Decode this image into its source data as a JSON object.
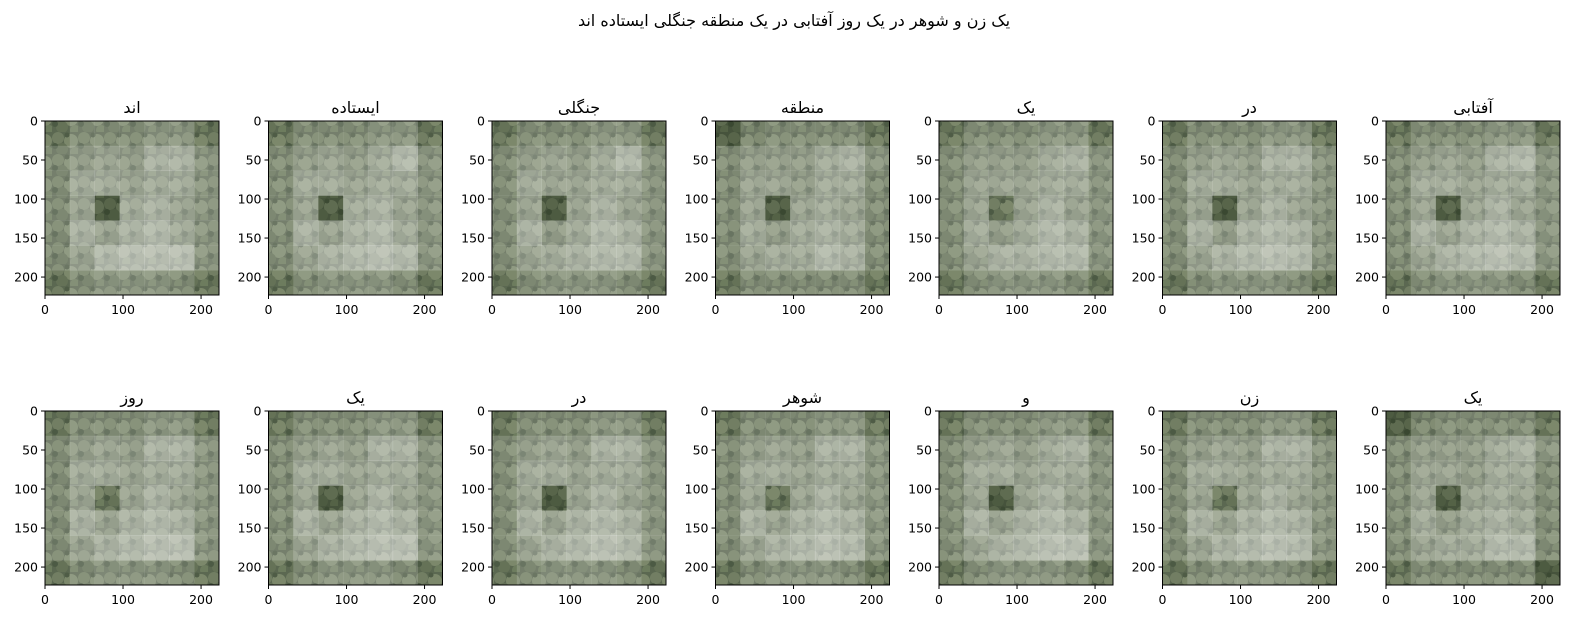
{
  "figure": {
    "title": "یک زن و شوهر در یک روز آفتابی در یک منطقه جنگلی ایستاده اند"
  },
  "chart_data": {
    "type": "heatmap",
    "description_of_panels": "attention overlays per word",
    "xlim": [
      0,
      223
    ],
    "ylim": [
      223,
      0
    ],
    "xticks": [
      0,
      100,
      200
    ],
    "yticks": [
      0,
      50,
      100,
      150,
      200
    ],
    "grid_cells": 7,
    "background_colors": {
      "dark": "#3c4a35",
      "mid": "#6f7d62",
      "light": "#a7b38f"
    },
    "overlay_color": "#ffffff",
    "panels": [
      {
        "title": "اند",
        "mask": [
          [
            0.05,
            0.2,
            0.2,
            0.2,
            0.25,
            0.25,
            0.05
          ],
          [
            0.2,
            0.3,
            0.35,
            0.3,
            0.45,
            0.45,
            0.25
          ],
          [
            0.2,
            0.4,
            0.4,
            0.35,
            0.4,
            0.4,
            0.25
          ],
          [
            0.2,
            0.35,
            0.0,
            0.4,
            0.45,
            0.35,
            0.25
          ],
          [
            0.2,
            0.45,
            0.35,
            0.45,
            0.5,
            0.4,
            0.25
          ],
          [
            0.2,
            0.35,
            0.5,
            0.55,
            0.55,
            0.55,
            0.25
          ],
          [
            0.05,
            0.2,
            0.25,
            0.25,
            0.25,
            0.2,
            0.05
          ]
        ]
      },
      {
        "title": "ایستاده",
        "mask": [
          [
            0.05,
            0.2,
            0.2,
            0.2,
            0.25,
            0.25,
            0.05
          ],
          [
            0.2,
            0.3,
            0.35,
            0.3,
            0.4,
            0.5,
            0.25
          ],
          [
            0.2,
            0.4,
            0.4,
            0.35,
            0.4,
            0.4,
            0.25
          ],
          [
            0.2,
            0.35,
            0.0,
            0.4,
            0.45,
            0.35,
            0.25
          ],
          [
            0.2,
            0.45,
            0.35,
            0.45,
            0.5,
            0.4,
            0.25
          ],
          [
            0.2,
            0.35,
            0.45,
            0.5,
            0.55,
            0.5,
            0.25
          ],
          [
            0.05,
            0.2,
            0.25,
            0.25,
            0.25,
            0.2,
            0.05
          ]
        ]
      },
      {
        "title": "جنگلی",
        "mask": [
          [
            0.05,
            0.2,
            0.2,
            0.2,
            0.25,
            0.25,
            0.05
          ],
          [
            0.2,
            0.3,
            0.35,
            0.3,
            0.4,
            0.5,
            0.25
          ],
          [
            0.2,
            0.4,
            0.35,
            0.35,
            0.4,
            0.4,
            0.25
          ],
          [
            0.2,
            0.35,
            0.0,
            0.35,
            0.45,
            0.35,
            0.25
          ],
          [
            0.2,
            0.45,
            0.3,
            0.4,
            0.5,
            0.45,
            0.25
          ],
          [
            0.2,
            0.35,
            0.4,
            0.45,
            0.5,
            0.5,
            0.25
          ],
          [
            0.05,
            0.2,
            0.25,
            0.25,
            0.25,
            0.2,
            0.05
          ]
        ]
      },
      {
        "title": "منطقه",
        "mask": [
          [
            0.0,
            0.15,
            0.2,
            0.2,
            0.2,
            0.2,
            0.05
          ],
          [
            0.2,
            0.3,
            0.3,
            0.3,
            0.4,
            0.45,
            0.25
          ],
          [
            0.2,
            0.35,
            0.35,
            0.3,
            0.4,
            0.4,
            0.2
          ],
          [
            0.2,
            0.35,
            0.0,
            0.35,
            0.4,
            0.35,
            0.2
          ],
          [
            0.2,
            0.4,
            0.3,
            0.4,
            0.45,
            0.4,
            0.2
          ],
          [
            0.2,
            0.35,
            0.4,
            0.4,
            0.5,
            0.45,
            0.2
          ],
          [
            0.05,
            0.2,
            0.2,
            0.2,
            0.2,
            0.2,
            0.05
          ]
        ]
      },
      {
        "title": "یک",
        "mask": [
          [
            0.05,
            0.2,
            0.2,
            0.2,
            0.25,
            0.25,
            0.05
          ],
          [
            0.2,
            0.3,
            0.3,
            0.3,
            0.4,
            0.45,
            0.25
          ],
          [
            0.2,
            0.35,
            0.35,
            0.35,
            0.4,
            0.4,
            0.25
          ],
          [
            0.2,
            0.35,
            0.05,
            0.35,
            0.45,
            0.35,
            0.25
          ],
          [
            0.2,
            0.4,
            0.3,
            0.4,
            0.5,
            0.45,
            0.25
          ],
          [
            0.2,
            0.35,
            0.45,
            0.45,
            0.5,
            0.5,
            0.25
          ],
          [
            0.05,
            0.2,
            0.25,
            0.25,
            0.25,
            0.2,
            0.05
          ]
        ]
      },
      {
        "title": "در",
        "mask": [
          [
            0.05,
            0.2,
            0.2,
            0.2,
            0.25,
            0.25,
            0.05
          ],
          [
            0.2,
            0.3,
            0.35,
            0.3,
            0.45,
            0.45,
            0.25
          ],
          [
            0.2,
            0.4,
            0.4,
            0.35,
            0.4,
            0.4,
            0.25
          ],
          [
            0.2,
            0.35,
            0.0,
            0.35,
            0.45,
            0.35,
            0.25
          ],
          [
            0.2,
            0.45,
            0.3,
            0.45,
            0.5,
            0.45,
            0.25
          ],
          [
            0.2,
            0.35,
            0.45,
            0.5,
            0.55,
            0.5,
            0.25
          ],
          [
            0.05,
            0.2,
            0.25,
            0.25,
            0.25,
            0.2,
            0.05
          ]
        ]
      },
      {
        "title": "آفتابی",
        "mask": [
          [
            0.05,
            0.2,
            0.2,
            0.2,
            0.25,
            0.25,
            0.05
          ],
          [
            0.2,
            0.3,
            0.35,
            0.3,
            0.45,
            0.5,
            0.25
          ],
          [
            0.2,
            0.4,
            0.4,
            0.35,
            0.4,
            0.4,
            0.25
          ],
          [
            0.2,
            0.35,
            0.0,
            0.35,
            0.45,
            0.35,
            0.25
          ],
          [
            0.2,
            0.45,
            0.35,
            0.45,
            0.5,
            0.45,
            0.25
          ],
          [
            0.2,
            0.35,
            0.45,
            0.5,
            0.55,
            0.5,
            0.25
          ],
          [
            0.05,
            0.2,
            0.25,
            0.25,
            0.25,
            0.2,
            0.05
          ]
        ]
      },
      {
        "title": "روز",
        "mask": [
          [
            0.05,
            0.2,
            0.2,
            0.2,
            0.25,
            0.25,
            0.05
          ],
          [
            0.2,
            0.3,
            0.35,
            0.3,
            0.45,
            0.45,
            0.25
          ],
          [
            0.2,
            0.4,
            0.4,
            0.35,
            0.4,
            0.4,
            0.25
          ],
          [
            0.2,
            0.35,
            0.05,
            0.35,
            0.45,
            0.35,
            0.25
          ],
          [
            0.2,
            0.45,
            0.35,
            0.45,
            0.5,
            0.45,
            0.25
          ],
          [
            0.2,
            0.35,
            0.45,
            0.5,
            0.55,
            0.55,
            0.25
          ],
          [
            0.05,
            0.2,
            0.25,
            0.25,
            0.25,
            0.2,
            0.05
          ]
        ]
      },
      {
        "title": "یک",
        "mask": [
          [
            0.05,
            0.2,
            0.2,
            0.2,
            0.25,
            0.25,
            0.05
          ],
          [
            0.2,
            0.3,
            0.35,
            0.3,
            0.45,
            0.45,
            0.25
          ],
          [
            0.2,
            0.4,
            0.4,
            0.35,
            0.4,
            0.4,
            0.25
          ],
          [
            0.2,
            0.35,
            0.0,
            0.35,
            0.45,
            0.35,
            0.25
          ],
          [
            0.2,
            0.45,
            0.35,
            0.45,
            0.5,
            0.45,
            0.25
          ],
          [
            0.2,
            0.35,
            0.45,
            0.5,
            0.55,
            0.55,
            0.25
          ],
          [
            0.05,
            0.2,
            0.25,
            0.25,
            0.25,
            0.2,
            0.05
          ]
        ]
      },
      {
        "title": "در",
        "mask": [
          [
            0.05,
            0.2,
            0.2,
            0.2,
            0.25,
            0.25,
            0.05
          ],
          [
            0.2,
            0.3,
            0.35,
            0.3,
            0.45,
            0.45,
            0.25
          ],
          [
            0.2,
            0.4,
            0.4,
            0.35,
            0.4,
            0.4,
            0.25
          ],
          [
            0.2,
            0.35,
            0.0,
            0.35,
            0.45,
            0.35,
            0.25
          ],
          [
            0.2,
            0.45,
            0.35,
            0.45,
            0.5,
            0.45,
            0.25
          ],
          [
            0.2,
            0.35,
            0.45,
            0.5,
            0.55,
            0.5,
            0.25
          ],
          [
            0.05,
            0.2,
            0.25,
            0.25,
            0.25,
            0.2,
            0.05
          ]
        ]
      },
      {
        "title": "شوهر",
        "mask": [
          [
            0.05,
            0.2,
            0.2,
            0.2,
            0.25,
            0.25,
            0.05
          ],
          [
            0.2,
            0.3,
            0.35,
            0.3,
            0.45,
            0.45,
            0.25
          ],
          [
            0.2,
            0.4,
            0.4,
            0.35,
            0.4,
            0.4,
            0.25
          ],
          [
            0.2,
            0.35,
            0.05,
            0.35,
            0.45,
            0.35,
            0.25
          ],
          [
            0.2,
            0.45,
            0.35,
            0.45,
            0.5,
            0.45,
            0.25
          ],
          [
            0.2,
            0.35,
            0.45,
            0.5,
            0.55,
            0.5,
            0.25
          ],
          [
            0.05,
            0.2,
            0.25,
            0.25,
            0.25,
            0.2,
            0.05
          ]
        ]
      },
      {
        "title": "و",
        "mask": [
          [
            0.05,
            0.2,
            0.2,
            0.2,
            0.25,
            0.25,
            0.05
          ],
          [
            0.2,
            0.3,
            0.35,
            0.3,
            0.4,
            0.45,
            0.25
          ],
          [
            0.2,
            0.4,
            0.4,
            0.35,
            0.4,
            0.4,
            0.25
          ],
          [
            0.2,
            0.35,
            0.0,
            0.35,
            0.45,
            0.35,
            0.25
          ],
          [
            0.2,
            0.45,
            0.35,
            0.45,
            0.5,
            0.45,
            0.25
          ],
          [
            0.2,
            0.35,
            0.45,
            0.5,
            0.55,
            0.55,
            0.25
          ],
          [
            0.05,
            0.2,
            0.25,
            0.25,
            0.25,
            0.2,
            0.05
          ]
        ]
      },
      {
        "title": "زن",
        "mask": [
          [
            0.05,
            0.2,
            0.2,
            0.2,
            0.25,
            0.25,
            0.05
          ],
          [
            0.2,
            0.3,
            0.35,
            0.3,
            0.45,
            0.45,
            0.25
          ],
          [
            0.2,
            0.4,
            0.4,
            0.35,
            0.4,
            0.4,
            0.25
          ],
          [
            0.2,
            0.35,
            0.05,
            0.35,
            0.45,
            0.35,
            0.25
          ],
          [
            0.2,
            0.45,
            0.35,
            0.45,
            0.5,
            0.45,
            0.25
          ],
          [
            0.2,
            0.35,
            0.45,
            0.5,
            0.55,
            0.5,
            0.25
          ],
          [
            0.05,
            0.2,
            0.25,
            0.25,
            0.25,
            0.2,
            0.05
          ]
        ]
      },
      {
        "title": "یک",
        "mask": [
          [
            0.0,
            0.15,
            0.2,
            0.2,
            0.2,
            0.2,
            0.05
          ],
          [
            0.2,
            0.3,
            0.3,
            0.3,
            0.4,
            0.45,
            0.25
          ],
          [
            0.2,
            0.35,
            0.35,
            0.3,
            0.4,
            0.4,
            0.2
          ],
          [
            0.2,
            0.35,
            0.0,
            0.35,
            0.4,
            0.35,
            0.2
          ],
          [
            0.2,
            0.4,
            0.3,
            0.4,
            0.45,
            0.4,
            0.2
          ],
          [
            0.2,
            0.35,
            0.4,
            0.4,
            0.5,
            0.5,
            0.2
          ],
          [
            0.05,
            0.2,
            0.2,
            0.2,
            0.2,
            0.2,
            0.0
          ]
        ]
      }
    ]
  }
}
